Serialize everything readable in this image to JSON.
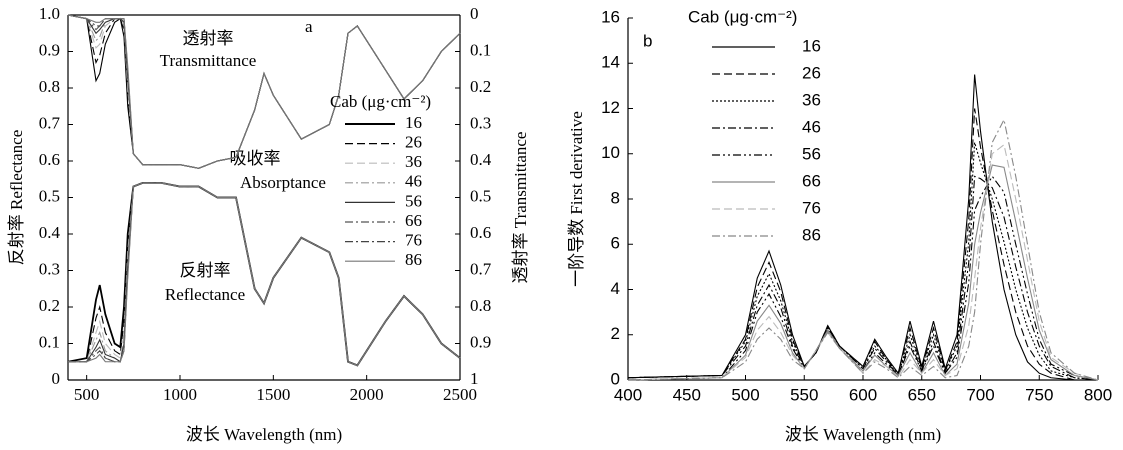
{
  "chart_data": [
    {
      "type": "line",
      "panel_label": "a",
      "xlabel": "波长 Wavelength (nm)",
      "ylabel": "反射率 Reflectance",
      "y2label": "透射率 Transmittance",
      "legend_title": "Cab (μg·cm⁻²)",
      "annotations": [
        "透射率",
        "Transmittance",
        "吸收率",
        "Absorptance",
        "反射率",
        "Reflectance"
      ],
      "xlim": [
        400,
        2500
      ],
      "xticks": [
        500,
        1000,
        1500,
        2000,
        2500
      ],
      "ylim": [
        0,
        1
      ],
      "yticks": [
        0,
        0.1,
        0.2,
        0.3,
        0.4,
        0.5,
        0.6,
        0.7,
        0.8,
        0.9,
        {
          "value": 1,
          "label": "1.0"
        }
      ],
      "y2lim": [
        1,
        0
      ],
      "y2ticks": [
        0,
        0.1,
        0.2,
        0.3,
        0.4,
        0.5,
        0.6,
        0.7,
        0.8,
        0.9,
        1
      ],
      "x": [
        400,
        500,
        550,
        570,
        600,
        650,
        680,
        700,
        720,
        750,
        800,
        900,
        1000,
        1100,
        1200,
        1300,
        1400,
        1450,
        1500,
        1650,
        1800,
        1850,
        1900,
        1950,
        2100,
        2200,
        2300,
        2400,
        2500
      ],
      "series": [
        {
          "name": "16",
          "color": "#000000",
          "line_style": "solid",
          "values": [
            0.05,
            0.06,
            0.22,
            0.26,
            0.18,
            0.1,
            0.09,
            0.2,
            0.4,
            0.53,
            0.54,
            0.54,
            0.53,
            0.53,
            0.5,
            0.5,
            0.25,
            0.21,
            0.28,
            0.39,
            0.35,
            0.28,
            0.05,
            0.04,
            0.16,
            0.23,
            0.18,
            0.1,
            0.06
          ]
        },
        {
          "name": "26",
          "color": "#000000",
          "line_style": "dashed",
          "values": [
            0.05,
            0.05,
            0.17,
            0.2,
            0.13,
            0.08,
            0.07,
            0.16,
            0.37,
            0.53,
            0.54,
            0.54,
            0.53,
            0.53,
            0.5,
            0.5,
            0.25,
            0.21,
            0.28,
            0.39,
            0.35,
            0.28,
            0.05,
            0.04,
            0.16,
            0.23,
            0.18,
            0.1,
            0.06
          ]
        },
        {
          "name": "36",
          "color": "#bbbbbb",
          "line_style": "dashed",
          "values": [
            0.05,
            0.05,
            0.13,
            0.16,
            0.1,
            0.07,
            0.06,
            0.13,
            0.35,
            0.53,
            0.54,
            0.54,
            0.53,
            0.53,
            0.5,
            0.5,
            0.25,
            0.21,
            0.28,
            0.39,
            0.35,
            0.28,
            0.05,
            0.04,
            0.16,
            0.23,
            0.18,
            0.1,
            0.06
          ]
        },
        {
          "name": "46",
          "color": "#999999",
          "line_style": "dashdot",
          "values": [
            0.05,
            0.05,
            0.11,
            0.13,
            0.08,
            0.06,
            0.05,
            0.11,
            0.33,
            0.53,
            0.54,
            0.54,
            0.53,
            0.53,
            0.5,
            0.5,
            0.25,
            0.21,
            0.28,
            0.39,
            0.35,
            0.28,
            0.05,
            0.04,
            0.16,
            0.23,
            0.18,
            0.1,
            0.06
          ]
        },
        {
          "name": "56",
          "color": "#333333",
          "line_style": "solid",
          "values": [
            0.05,
            0.05,
            0.09,
            0.11,
            0.07,
            0.06,
            0.05,
            0.1,
            0.31,
            0.53,
            0.54,
            0.54,
            0.53,
            0.53,
            0.5,
            0.5,
            0.25,
            0.21,
            0.28,
            0.39,
            0.35,
            0.28,
            0.05,
            0.04,
            0.16,
            0.23,
            0.18,
            0.1,
            0.06
          ]
        },
        {
          "name": "66",
          "color": "#555555",
          "line_style": "dashdot",
          "values": [
            0.05,
            0.05,
            0.08,
            0.09,
            0.06,
            0.05,
            0.05,
            0.09,
            0.3,
            0.53,
            0.54,
            0.54,
            0.53,
            0.53,
            0.5,
            0.5,
            0.25,
            0.21,
            0.28,
            0.39,
            0.35,
            0.28,
            0.05,
            0.04,
            0.16,
            0.23,
            0.18,
            0.1,
            0.06
          ]
        },
        {
          "name": "76",
          "color": "#444444",
          "line_style": "dashdot",
          "values": [
            0.05,
            0.05,
            0.07,
            0.08,
            0.06,
            0.05,
            0.05,
            0.08,
            0.29,
            0.53,
            0.54,
            0.54,
            0.53,
            0.53,
            0.5,
            0.5,
            0.25,
            0.21,
            0.28,
            0.39,
            0.35,
            0.28,
            0.05,
            0.04,
            0.16,
            0.23,
            0.18,
            0.1,
            0.06
          ]
        },
        {
          "name": "86",
          "color": "#777777",
          "line_style": "solid",
          "values": [
            0.05,
            0.05,
            0.06,
            0.07,
            0.05,
            0.05,
            0.05,
            0.08,
            0.28,
            0.53,
            0.54,
            0.54,
            0.53,
            0.53,
            0.5,
            0.5,
            0.25,
            0.21,
            0.28,
            0.39,
            0.35,
            0.28,
            0.05,
            0.04,
            0.16,
            0.23,
            0.18,
            0.1,
            0.06
          ]
        },
        {
          "axis": "y2",
          "color": "#000000",
          "line_style": "solid",
          "values": [
            0,
            0.01,
            0.18,
            0.16,
            0.08,
            0.02,
            0.01,
            0.06,
            0.25,
            0.38,
            0.41,
            0.41,
            0.41,
            0.42,
            0.4,
            0.39,
            0.26,
            0.16,
            0.22,
            0.34,
            0.3,
            0.22,
            0.05,
            0.03,
            0.15,
            0.23,
            0.18,
            0.1,
            0.05
          ]
        },
        {
          "axis": "y2",
          "color": "#000000",
          "line_style": "dashed",
          "values": [
            0,
            0.01,
            0.13,
            0.11,
            0.05,
            0.01,
            0.01,
            0.04,
            0.22,
            0.38,
            0.41,
            0.41,
            0.41,
            0.42,
            0.4,
            0.39,
            0.26,
            0.16,
            0.22,
            0.34,
            0.3,
            0.22,
            0.05,
            0.03,
            0.15,
            0.23,
            0.18,
            0.1,
            0.05
          ]
        },
        {
          "axis": "y2",
          "color": "#bbbbbb",
          "line_style": "dashed",
          "values": [
            0,
            0.01,
            0.09,
            0.08,
            0.03,
            0.01,
            0.01,
            0.03,
            0.2,
            0.38,
            0.41,
            0.41,
            0.41,
            0.42,
            0.4,
            0.39,
            0.26,
            0.16,
            0.22,
            0.34,
            0.3,
            0.22,
            0.05,
            0.03,
            0.15,
            0.23,
            0.18,
            0.1,
            0.05
          ]
        },
        {
          "axis": "y2",
          "color": "#999999",
          "line_style": "dashdot",
          "values": [
            0,
            0.01,
            0.07,
            0.06,
            0.02,
            0.01,
            0.01,
            0.02,
            0.18,
            0.38,
            0.41,
            0.41,
            0.41,
            0.42,
            0.4,
            0.39,
            0.26,
            0.16,
            0.22,
            0.34,
            0.3,
            0.22,
            0.05,
            0.03,
            0.15,
            0.23,
            0.18,
            0.1,
            0.05
          ]
        },
        {
          "axis": "y2",
          "color": "#333333",
          "line_style": "solid",
          "values": [
            0,
            0.01,
            0.05,
            0.04,
            0.02,
            0.01,
            0.01,
            0.02,
            0.17,
            0.38,
            0.41,
            0.41,
            0.41,
            0.42,
            0.4,
            0.39,
            0.26,
            0.16,
            0.22,
            0.34,
            0.3,
            0.22,
            0.05,
            0.03,
            0.15,
            0.23,
            0.18,
            0.1,
            0.05
          ]
        },
        {
          "axis": "y2",
          "color": "#555555",
          "line_style": "dashdot",
          "values": [
            0,
            0.01,
            0.04,
            0.03,
            0.01,
            0.01,
            0.01,
            0.01,
            0.16,
            0.38,
            0.41,
            0.41,
            0.41,
            0.42,
            0.4,
            0.39,
            0.26,
            0.16,
            0.22,
            0.34,
            0.3,
            0.22,
            0.05,
            0.03,
            0.15,
            0.23,
            0.18,
            0.1,
            0.05
          ]
        },
        {
          "axis": "y2",
          "color": "#444444",
          "line_style": "dashdot",
          "values": [
            0,
            0.01,
            0.03,
            0.03,
            0.01,
            0.01,
            0.01,
            0.01,
            0.15,
            0.38,
            0.41,
            0.41,
            0.41,
            0.42,
            0.4,
            0.39,
            0.26,
            0.16,
            0.22,
            0.34,
            0.3,
            0.22,
            0.05,
            0.03,
            0.15,
            0.23,
            0.18,
            0.1,
            0.05
          ]
        },
        {
          "axis": "y2",
          "color": "#777777",
          "line_style": "solid",
          "values": [
            0,
            0.01,
            0.02,
            0.02,
            0.01,
            0.01,
            0.01,
            0.01,
            0.14,
            0.38,
            0.41,
            0.41,
            0.41,
            0.42,
            0.4,
            0.39,
            0.26,
            0.16,
            0.22,
            0.34,
            0.3,
            0.22,
            0.05,
            0.03,
            0.15,
            0.23,
            0.18,
            0.1,
            0.05
          ]
        }
      ]
    },
    {
      "type": "line",
      "panel_label": "b",
      "xlabel": "波长 Wavelength (nm)",
      "ylabel": "一阶导数 First derivative",
      "legend_title": "Cab (μg·cm⁻²)",
      "xlim": [
        400,
        800
      ],
      "xticks": [
        400,
        450,
        500,
        550,
        600,
        650,
        700,
        750,
        800
      ],
      "ylim": [
        0,
        16
      ],
      "yticks": [
        0,
        2,
        4,
        6,
        8,
        10,
        12,
        14,
        16
      ],
      "x": [
        400,
        480,
        500,
        510,
        520,
        530,
        540,
        550,
        560,
        570,
        580,
        600,
        610,
        620,
        630,
        640,
        650,
        660,
        670,
        680,
        690,
        695,
        700,
        710,
        720,
        730,
        740,
        750,
        760,
        780,
        800
      ],
      "series": [
        {
          "name": "16",
          "color": "#000000",
          "line_style": "solid",
          "values": [
            0.1,
            0.2,
            2,
            4.5,
            5.7,
            4.2,
            2,
            0.6,
            1.2,
            2.4,
            1.5,
            0.6,
            1.8,
            1,
            0.3,
            2.6,
            0.6,
            2.6,
            0.5,
            2,
            8,
            13.5,
            11,
            7,
            4,
            2,
            0.8,
            0.3,
            0.1,
            0,
            0
          ]
        },
        {
          "name": "26",
          "color": "#000000",
          "line_style": "dashed",
          "values": [
            0.1,
            0.2,
            1.8,
            4.1,
            5.2,
            3.9,
            1.8,
            0.6,
            1.2,
            2.4,
            1.5,
            0.6,
            1.7,
            0.9,
            0.3,
            2.3,
            0.5,
            2.3,
            0.4,
            1.7,
            7.1,
            12,
            10.3,
            7.5,
            5.1,
            3,
            1.5,
            0.7,
            0.3,
            0,
            0
          ]
        },
        {
          "name": "36",
          "color": "#000000",
          "line_style": "dotted",
          "values": [
            0.1,
            0.2,
            1.7,
            3.7,
            4.7,
            3.5,
            1.7,
            0.6,
            1.2,
            2.3,
            1.5,
            0.5,
            1.5,
            0.9,
            0.2,
            2,
            0.5,
            2,
            0.4,
            1.5,
            6.1,
            10.5,
            9.6,
            8,
            6.1,
            4,
            2.3,
            1.1,
            0.4,
            0.1,
            0
          ]
        },
        {
          "name": "46",
          "color": "#000000",
          "line_style": "dashdot",
          "values": [
            0.1,
            0.2,
            1.5,
            3.3,
            4.2,
            3.2,
            1.5,
            0.6,
            1.2,
            2.3,
            1.5,
            0.5,
            1.4,
            0.8,
            0.2,
            1.7,
            0.4,
            1.7,
            0.3,
            1.2,
            5.2,
            9,
            8.9,
            8.5,
            7.2,
            5,
            3,
            1.5,
            0.6,
            0.1,
            0
          ]
        },
        {
          "name": "56",
          "color": "#000000",
          "line_style": "dashdotdot",
          "values": [
            0,
            0.1,
            1.3,
            3,
            3.8,
            2.8,
            1.4,
            0.5,
            1.3,
            2.2,
            1.4,
            0.4,
            1.2,
            0.7,
            0.2,
            1.5,
            0.4,
            1.5,
            0.3,
            1,
            4.3,
            7.5,
            8.1,
            9,
            8.3,
            6,
            3.8,
            1.8,
            0.7,
            0.2,
            0
          ]
        },
        {
          "name": "66",
          "color": "#888888",
          "line_style": "solid",
          "values": [
            0,
            0.1,
            1.1,
            2.6,
            3.3,
            2.5,
            1.2,
            0.5,
            1.3,
            2.2,
            1.4,
            0.4,
            1.1,
            0.6,
            0.2,
            1.2,
            0.3,
            1.2,
            0.2,
            0.7,
            3.4,
            6,
            7.4,
            9.5,
            9.4,
            7,
            4.5,
            2.2,
            0.9,
            0.2,
            0
          ]
        },
        {
          "name": "76",
          "color": "#bbbbbb",
          "line_style": "dashed",
          "values": [
            0,
            0.1,
            1,
            2.2,
            2.8,
            2.1,
            1.1,
            0.5,
            1.3,
            2.1,
            1.4,
            0.3,
            0.9,
            0.6,
            0.1,
            0.9,
            0.3,
            0.9,
            0.2,
            0.5,
            2.4,
            4.5,
            6.7,
            10,
            10.4,
            8,
            5.3,
            2.6,
            1,
            0.3,
            0
          ]
        },
        {
          "name": "86",
          "color": "#888888",
          "line_style": "dashdot",
          "values": [
            0,
            0.1,
            0.8,
            1.8,
            2.3,
            1.8,
            0.9,
            0.5,
            1.3,
            2.1,
            1.4,
            0.3,
            0.8,
            0.5,
            0.1,
            0.6,
            0.2,
            0.6,
            0.1,
            0.2,
            1.5,
            3,
            6,
            10.5,
            11.5,
            9,
            6,
            3,
            1.2,
            0.3,
            0
          ]
        }
      ]
    }
  ]
}
